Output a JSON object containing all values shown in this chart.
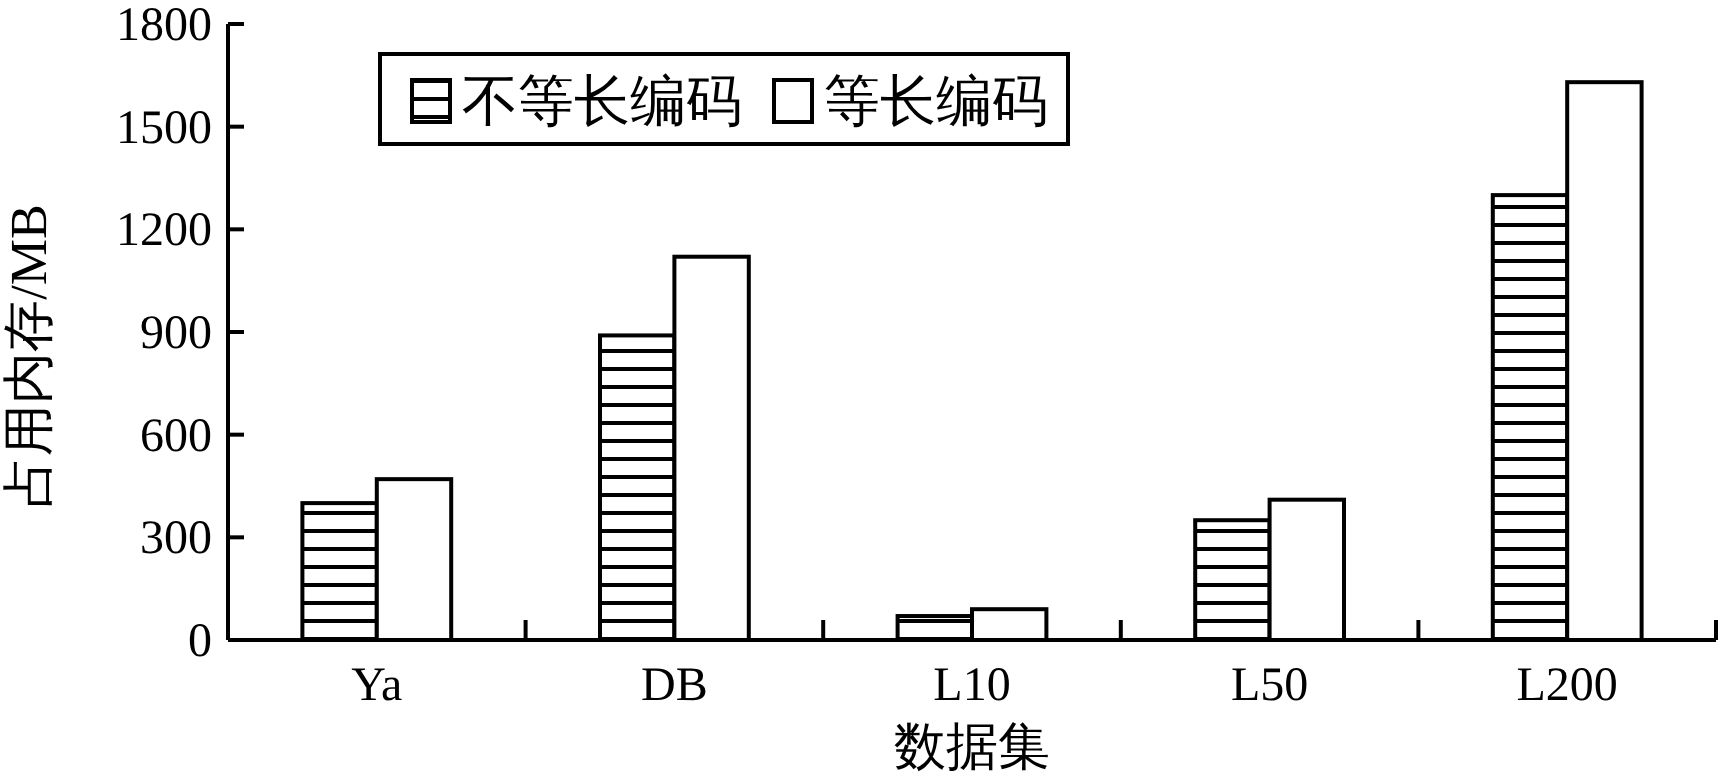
{
  "chart_data": {
    "type": "bar",
    "xlabel": "数据集",
    "ylabel": "占用内存/MB",
    "categories": [
      "Ya",
      "DB",
      "L10",
      "L50",
      "L200"
    ],
    "series": [
      {
        "name": "不等长编码",
        "color": "#000000",
        "values": [
          400,
          890,
          70,
          350,
          1300
        ]
      },
      {
        "name": "等长编码",
        "color": "#ffffff",
        "values": [
          470,
          1120,
          90,
          410,
          1630
        ]
      }
    ],
    "ylim": [
      0,
      1800
    ],
    "yticks": [
      0,
      300,
      600,
      900,
      1200,
      1500,
      1800
    ],
    "legend": "top",
    "grid": false
  }
}
